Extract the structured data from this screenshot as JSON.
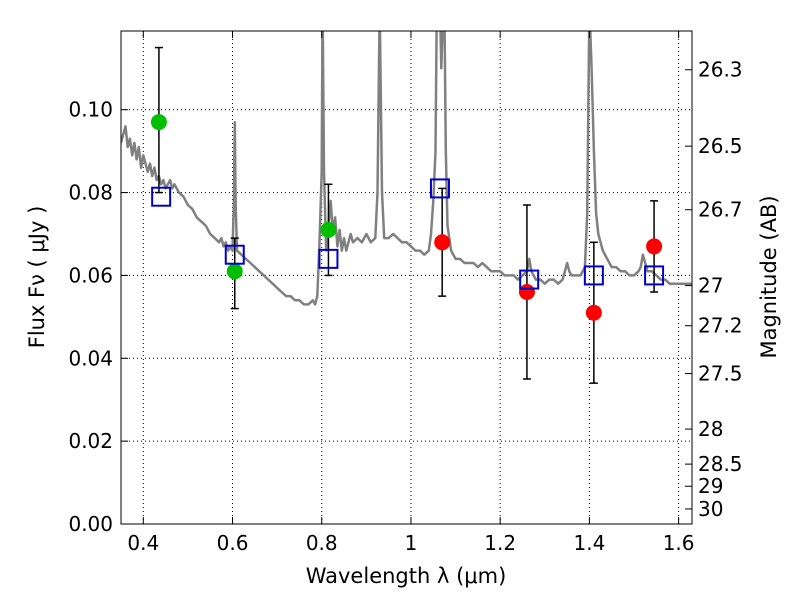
{
  "chart_data": {
    "type": "scatter",
    "xlabel": "Wavelength  λ (μm)",
    "ylabel": "Flux  Fν  ( μJy )",
    "ylabel_right": "Magnitude (AB)",
    "xlim": [
      0.35,
      1.63
    ],
    "ylim": [
      0.0,
      0.119
    ],
    "grid": true,
    "x_ticks": [
      {
        "value": 0.4,
        "label": "0.4"
      },
      {
        "value": 0.6,
        "label": "0.6"
      },
      {
        "value": 0.8,
        "label": "0.8"
      },
      {
        "value": 1.0,
        "label": "1"
      },
      {
        "value": 1.2,
        "label": "1.2"
      },
      {
        "value": 1.4,
        "label": "1.4"
      },
      {
        "value": 1.6,
        "label": "1.6"
      }
    ],
    "y_ticks": [
      {
        "value": 0.0,
        "label": "0.00"
      },
      {
        "value": 0.02,
        "label": "0.02"
      },
      {
        "value": 0.04,
        "label": "0.04"
      },
      {
        "value": 0.06,
        "label": "0.06"
      },
      {
        "value": 0.08,
        "label": "0.08"
      },
      {
        "value": 0.1,
        "label": "0.10"
      }
    ],
    "right_ticks": [
      {
        "mag": 26.3,
        "label": "26.3"
      },
      {
        "mag": 26.5,
        "label": "26.5"
      },
      {
        "mag": 26.7,
        "label": "26.7"
      },
      {
        "mag": 27.0,
        "label": "27"
      },
      {
        "mag": 27.2,
        "label": "27.2"
      },
      {
        "mag": 27.5,
        "label": "27.5"
      },
      {
        "mag": 28.0,
        "label": "28"
      },
      {
        "mag": 28.5,
        "label": "28.5"
      },
      {
        "mag": 29.0,
        "label": "29"
      },
      {
        "mag": 30.0,
        "label": "30"
      }
    ],
    "series": [
      {
        "kind": "line",
        "color": "#808080",
        "points": [
          [
            0.35,
            0.092
          ],
          [
            0.355,
            0.094
          ],
          [
            0.36,
            0.096
          ],
          [
            0.365,
            0.091
          ],
          [
            0.37,
            0.093
          ],
          [
            0.375,
            0.089
          ],
          [
            0.38,
            0.092
          ],
          [
            0.385,
            0.088
          ],
          [
            0.39,
            0.091
          ],
          [
            0.395,
            0.086
          ],
          [
            0.4,
            0.089
          ],
          [
            0.405,
            0.087
          ],
          [
            0.41,
            0.085
          ],
          [
            0.415,
            0.087
          ],
          [
            0.42,
            0.084
          ],
          [
            0.425,
            0.086
          ],
          [
            0.43,
            0.083
          ],
          [
            0.435,
            0.084
          ],
          [
            0.44,
            0.082
          ],
          [
            0.445,
            0.083
          ],
          [
            0.45,
            0.081
          ],
          [
            0.455,
            0.082
          ],
          [
            0.46,
            0.083
          ],
          [
            0.465,
            0.081
          ],
          [
            0.47,
            0.082
          ],
          [
            0.48,
            0.08
          ],
          [
            0.49,
            0.079
          ],
          [
            0.5,
            0.077
          ],
          [
            0.51,
            0.076
          ],
          [
            0.52,
            0.074
          ],
          [
            0.53,
            0.073
          ],
          [
            0.54,
            0.072
          ],
          [
            0.55,
            0.07
          ],
          [
            0.56,
            0.069
          ],
          [
            0.57,
            0.068
          ],
          [
            0.575,
            0.069
          ],
          [
            0.58,
            0.067
          ],
          [
            0.585,
            0.068
          ],
          [
            0.59,
            0.066
          ],
          [
            0.595,
            0.067
          ],
          [
            0.6,
            0.066
          ],
          [
            0.603,
            0.078
          ],
          [
            0.605,
            0.097
          ],
          [
            0.607,
            0.078
          ],
          [
            0.61,
            0.066
          ],
          [
            0.62,
            0.065
          ],
          [
            0.63,
            0.064
          ],
          [
            0.64,
            0.063
          ],
          [
            0.65,
            0.062
          ],
          [
            0.66,
            0.061
          ],
          [
            0.67,
            0.06
          ],
          [
            0.68,
            0.059
          ],
          [
            0.69,
            0.058
          ],
          [
            0.7,
            0.057
          ],
          [
            0.71,
            0.056
          ],
          [
            0.72,
            0.055
          ],
          [
            0.73,
            0.055
          ],
          [
            0.74,
            0.054
          ],
          [
            0.75,
            0.054
          ],
          [
            0.76,
            0.053
          ],
          [
            0.77,
            0.053
          ],
          [
            0.78,
            0.054
          ],
          [
            0.785,
            0.053
          ],
          [
            0.79,
            0.055
          ],
          [
            0.795,
            0.068
          ],
          [
            0.8,
            0.085
          ],
          [
            0.802,
            0.125
          ],
          [
            0.805,
            0.085
          ],
          [
            0.81,
            0.066
          ],
          [
            0.815,
            0.072
          ],
          [
            0.82,
            0.078
          ],
          [
            0.825,
            0.07
          ],
          [
            0.83,
            0.074
          ],
          [
            0.835,
            0.067
          ],
          [
            0.84,
            0.071
          ],
          [
            0.845,
            0.066
          ],
          [
            0.85,
            0.069
          ],
          [
            0.855,
            0.066
          ],
          [
            0.86,
            0.068
          ],
          [
            0.865,
            0.07
          ],
          [
            0.87,
            0.068
          ],
          [
            0.88,
            0.069
          ],
          [
            0.89,
            0.068
          ],
          [
            0.9,
            0.07
          ],
          [
            0.91,
            0.068
          ],
          [
            0.92,
            0.069
          ],
          [
            0.925,
            0.08
          ],
          [
            0.93,
            0.125
          ],
          [
            0.935,
            0.08
          ],
          [
            0.94,
            0.069
          ],
          [
            0.95,
            0.069
          ],
          [
            0.96,
            0.07
          ],
          [
            0.97,
            0.069
          ],
          [
            0.98,
            0.068
          ],
          [
            0.99,
            0.068
          ],
          [
            1.0,
            0.067
          ],
          [
            1.01,
            0.066
          ],
          [
            1.02,
            0.066
          ],
          [
            1.03,
            0.065
          ],
          [
            1.04,
            0.066
          ],
          [
            1.045,
            0.07
          ],
          [
            1.05,
            0.078
          ],
          [
            1.055,
            0.09
          ],
          [
            1.058,
            0.125
          ],
          [
            1.06,
            0.125
          ],
          [
            1.065,
            0.125
          ],
          [
            1.068,
            0.11
          ],
          [
            1.072,
            0.125
          ],
          [
            1.075,
            0.125
          ],
          [
            1.078,
            0.09
          ],
          [
            1.082,
            0.072
          ],
          [
            1.09,
            0.066
          ],
          [
            1.1,
            0.064
          ],
          [
            1.11,
            0.064
          ],
          [
            1.12,
            0.063
          ],
          [
            1.13,
            0.063
          ],
          [
            1.14,
            0.063
          ],
          [
            1.15,
            0.062
          ],
          [
            1.16,
            0.063
          ],
          [
            1.17,
            0.062
          ],
          [
            1.18,
            0.061
          ],
          [
            1.19,
            0.061
          ],
          [
            1.2,
            0.061
          ],
          [
            1.21,
            0.06
          ],
          [
            1.22,
            0.06
          ],
          [
            1.23,
            0.06
          ],
          [
            1.24,
            0.059
          ],
          [
            1.25,
            0.06
          ],
          [
            1.26,
            0.061
          ],
          [
            1.265,
            0.064
          ],
          [
            1.27,
            0.061
          ],
          [
            1.28,
            0.059
          ],
          [
            1.29,
            0.059
          ],
          [
            1.3,
            0.058
          ],
          [
            1.31,
            0.059
          ],
          [
            1.32,
            0.059
          ],
          [
            1.33,
            0.058
          ],
          [
            1.34,
            0.059
          ],
          [
            1.345,
            0.061
          ],
          [
            1.35,
            0.063
          ],
          [
            1.355,
            0.061
          ],
          [
            1.36,
            0.06
          ],
          [
            1.37,
            0.06
          ],
          [
            1.38,
            0.06
          ],
          [
            1.39,
            0.062
          ],
          [
            1.395,
            0.075
          ],
          [
            1.4,
            0.125
          ],
          [
            1.405,
            0.11
          ],
          [
            1.41,
            0.09
          ],
          [
            1.415,
            0.075
          ],
          [
            1.42,
            0.07
          ],
          [
            1.43,
            0.066
          ],
          [
            1.44,
            0.064
          ],
          [
            1.45,
            0.062
          ],
          [
            1.46,
            0.062
          ],
          [
            1.47,
            0.061
          ],
          [
            1.48,
            0.061
          ],
          [
            1.49,
            0.06
          ],
          [
            1.5,
            0.06
          ],
          [
            1.51,
            0.061
          ],
          [
            1.515,
            0.062
          ],
          [
            1.52,
            0.065
          ],
          [
            1.525,
            0.063
          ],
          [
            1.53,
            0.061
          ],
          [
            1.54,
            0.061
          ],
          [
            1.55,
            0.06
          ],
          [
            1.56,
            0.059
          ],
          [
            1.57,
            0.059
          ],
          [
            1.58,
            0.058
          ],
          [
            1.59,
            0.058
          ],
          [
            1.6,
            0.058
          ],
          [
            1.61,
            0.058
          ],
          [
            1.62,
            0.058
          ],
          [
            1.63,
            0.058
          ]
        ]
      },
      {
        "kind": "points",
        "marker": "circle",
        "color": "#00bf00",
        "x": [
          0.435,
          0.605,
          0.815
        ],
        "y": [
          0.097,
          0.061,
          0.071
        ],
        "yerr_low": [
          0.08,
          0.052,
          0.06
        ],
        "yerr_high": [
          0.115,
          0.069,
          0.082
        ]
      },
      {
        "kind": "points",
        "marker": "circle",
        "color": "#ff0000",
        "x": [
          1.07,
          1.26,
          1.41,
          1.545
        ],
        "y": [
          0.068,
          0.056,
          0.051,
          0.067
        ],
        "yerr_low": [
          0.055,
          0.035,
          0.034,
          0.056
        ],
        "yerr_high": [
          0.081,
          0.077,
          0.068,
          0.078
        ]
      },
      {
        "kind": "points",
        "marker": "square",
        "color": "#0000cc",
        "x": [
          0.44,
          0.605,
          0.815,
          1.065,
          1.265,
          1.41,
          1.545
        ],
        "y": [
          0.079,
          0.065,
          0.064,
          0.081,
          0.059,
          0.06,
          0.06
        ]
      }
    ]
  }
}
